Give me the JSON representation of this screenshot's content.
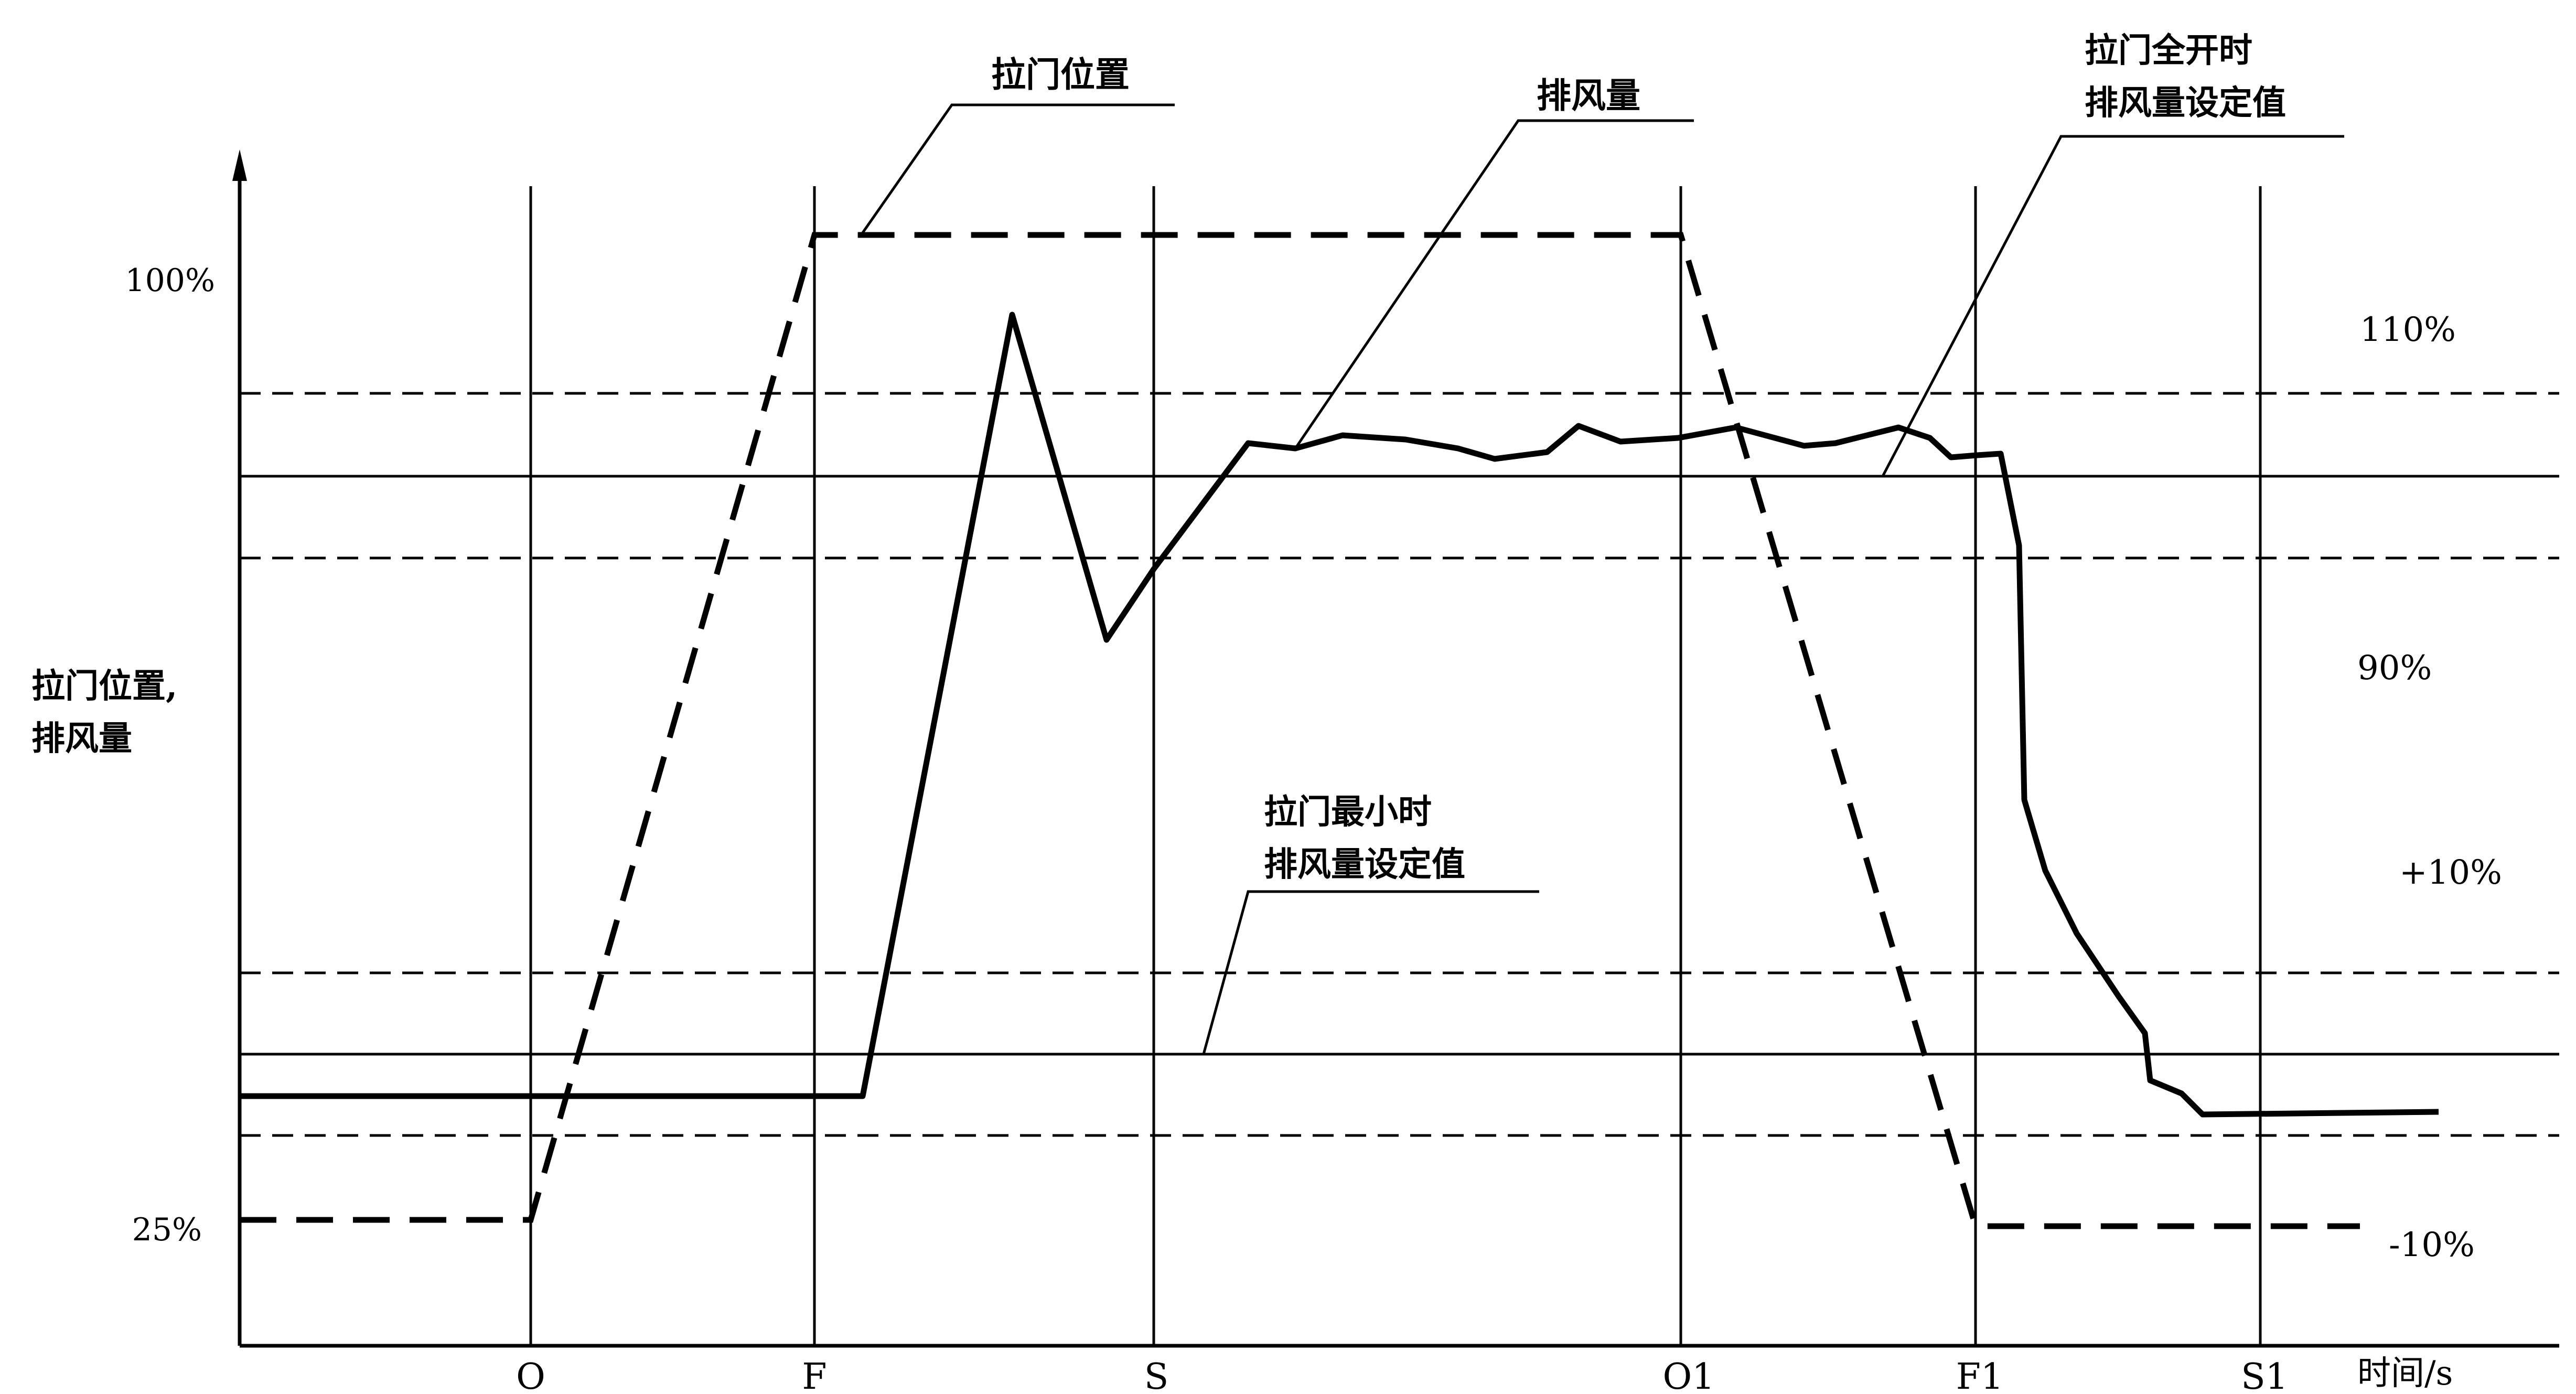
{
  "chart_data": {
    "type": "line",
    "title": "",
    "ylabel_lines": [
      "拉门位置,",
      "排风量"
    ],
    "xlabel": "时间/s",
    "x_ticks": [
      "O",
      "F",
      "S",
      "O1",
      "F1",
      "S1"
    ],
    "y_ticks": [
      "100%",
      "25%"
    ],
    "ylim": [
      0,
      110
    ],
    "right_labels": [
      "110%",
      "90%",
      "+10%",
      "-10%"
    ],
    "reference_levels": [
      {
        "name": "拉门全开时排风量设定值",
        "value": 80,
        "band_upper": 88,
        "band_lower": 72
      },
      {
        "name": "拉门最小时排风量设定值",
        "value": 24,
        "band_upper": 32,
        "band_lower": 16
      }
    ],
    "series": [
      {
        "name": "拉门位置",
        "style": "dashed",
        "points": [
          [
            "start",
            12.5
          ],
          [
            "O",
            12.5
          ],
          [
            "F",
            100
          ],
          [
            "O1",
            100
          ],
          [
            "F1",
            12
          ],
          [
            "end",
            12
          ]
        ]
      },
      {
        "name": "排风量",
        "style": "solid",
        "points": [
          [
            "start",
            20
          ],
          [
            "F+",
            20
          ],
          [
            "peak",
            90
          ],
          [
            "dip",
            58
          ],
          [
            "S",
            70
          ],
          [
            "plateau",
            80
          ],
          [
            "F1",
            80
          ],
          [
            "drop",
            68
          ],
          [
            "fall",
            45
          ],
          [
            "settle",
            14
          ],
          [
            "end",
            14
          ]
        ]
      }
    ],
    "annotations": [
      {
        "text_lines": [
          "拉门位置"
        ],
        "points_to": "拉门位置"
      },
      {
        "text_lines": [
          "排风量"
        ],
        "points_to": "排风量"
      },
      {
        "text_lines": [
          "拉门全开时",
          "排风量设定值"
        ],
        "points_to": "拉门全开时排风量设定值"
      },
      {
        "text_lines": [
          "拉门最小时",
          "排风量设定值"
        ],
        "points_to": "拉门最小时排风量设定值"
      }
    ]
  }
}
